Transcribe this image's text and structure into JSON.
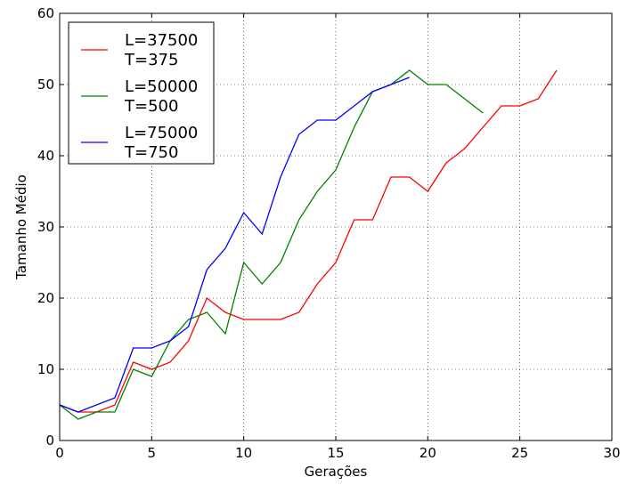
{
  "chart_data": {
    "type": "line",
    "xlabel": "Gerações",
    "ylabel": "Tamanho Médio",
    "xlim": [
      0,
      30
    ],
    "ylim": [
      0,
      60
    ],
    "xticks": [
      "0",
      "5",
      "10",
      "15",
      "20",
      "25",
      "30"
    ],
    "yticks": [
      "0",
      "10",
      "20",
      "30",
      "40",
      "50",
      "60"
    ],
    "grid": true,
    "legend_position": "top-left",
    "series": [
      {
        "name_line1": "L=37500",
        "name_line2": "T=375",
        "color": "#ff0000",
        "x": [
          0,
          1,
          2,
          3,
          4,
          5,
          6,
          7,
          8,
          9,
          10,
          11,
          12,
          13,
          14,
          15,
          16,
          17,
          18,
          19,
          20,
          21,
          22,
          23,
          24,
          25,
          26,
          27
        ],
        "y": [
          5,
          4,
          4,
          5,
          11,
          10,
          11,
          14,
          20,
          18,
          17,
          17,
          17,
          18,
          22,
          25,
          31,
          31,
          37,
          37,
          35,
          39,
          41,
          44,
          47,
          47,
          48,
          52
        ]
      },
      {
        "name_line1": "L=50000",
        "name_line2": "T=500",
        "color": "#008000",
        "x": [
          0,
          1,
          2,
          3,
          4,
          5,
          6,
          7,
          8,
          9,
          10,
          11,
          12,
          13,
          14,
          15,
          16,
          17,
          18,
          19,
          20,
          21,
          22,
          23
        ],
        "y": [
          5,
          3,
          4,
          4,
          10,
          9,
          14,
          17,
          18,
          15,
          25,
          22,
          25,
          31,
          35,
          38,
          44,
          49,
          50,
          52,
          50,
          50,
          48,
          46
        ]
      },
      {
        "name_line1": "L=75000",
        "name_line2": "T=750",
        "color": "#0000ff",
        "x": [
          0,
          1,
          2,
          3,
          4,
          5,
          6,
          7,
          8,
          9,
          10,
          11,
          12,
          13,
          14,
          15,
          16,
          17,
          18,
          19
        ],
        "y": [
          5,
          4,
          5,
          6,
          13,
          13,
          14,
          16,
          24,
          27,
          32,
          29,
          37,
          43,
          45,
          45,
          47,
          49,
          50,
          51
        ]
      }
    ]
  }
}
